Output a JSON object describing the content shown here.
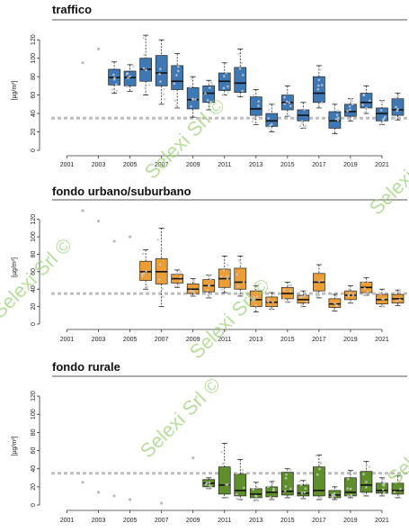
{
  "chart_data": [
    {
      "type": "box",
      "title": "traffico",
      "ylabel": "[µg/m³]",
      "ylim": [
        0,
        130
      ],
      "yticks": [
        0,
        20,
        40,
        60,
        80,
        100,
        120
      ],
      "xticks": [
        2001,
        2003,
        2005,
        2007,
        2009,
        2011,
        2013,
        2015,
        2017,
        2019,
        2021
      ],
      "xlim": [
        2000,
        2022.6
      ],
      "limit_line": 35,
      "color": "#3f79b5",
      "boxes": [
        {
          "year": 2004,
          "min": 62,
          "q1": 71,
          "median": 79,
          "q3": 88,
          "max": 96
        },
        {
          "year": 2005,
          "min": 64,
          "q1": 70,
          "median": 79,
          "q3": 86,
          "max": 93
        },
        {
          "year": 2006,
          "min": 60,
          "q1": 75,
          "median": 88,
          "q3": 100,
          "max": 125
        },
        {
          "year": 2007,
          "min": 50,
          "q1": 70,
          "median": 84,
          "q3": 103,
          "max": 120
        },
        {
          "year": 2008,
          "min": 46,
          "q1": 66,
          "median": 75,
          "q3": 92,
          "max": 105
        },
        {
          "year": 2009,
          "min": 36,
          "q1": 45,
          "median": 55,
          "q3": 68,
          "max": 80
        },
        {
          "year": 2010,
          "min": 44,
          "q1": 52,
          "median": 62,
          "q3": 70,
          "max": 76
        },
        {
          "year": 2011,
          "min": 60,
          "q1": 65,
          "median": 75,
          "q3": 84,
          "max": 95
        },
        {
          "year": 2012,
          "min": 58,
          "q1": 63,
          "median": 73,
          "q3": 90,
          "max": 110
        },
        {
          "year": 2013,
          "min": 28,
          "q1": 38,
          "median": 45,
          "q3": 58,
          "max": 66
        },
        {
          "year": 2014,
          "min": 20,
          "q1": 26,
          "median": 32,
          "q3": 40,
          "max": 50
        },
        {
          "year": 2015,
          "min": 37,
          "q1": 44,
          "median": 52,
          "q3": 60,
          "max": 70
        },
        {
          "year": 2016,
          "min": 24,
          "q1": 32,
          "median": 38,
          "q3": 44,
          "max": 52
        },
        {
          "year": 2017,
          "min": 46,
          "q1": 52,
          "median": 62,
          "q3": 80,
          "max": 92
        },
        {
          "year": 2018,
          "min": 18,
          "q1": 24,
          "median": 32,
          "q3": 42,
          "max": 50
        },
        {
          "year": 2019,
          "min": 32,
          "q1": 37,
          "median": 42,
          "q3": 50,
          "max": 56
        },
        {
          "year": 2020,
          "min": 40,
          "q1": 46,
          "median": 52,
          "q3": 62,
          "max": 70
        },
        {
          "year": 2021,
          "min": 28,
          "q1": 32,
          "median": 40,
          "q3": 46,
          "max": 54
        },
        {
          "year": 2022,
          "min": 33,
          "q1": 38,
          "median": 44,
          "q3": 56,
          "max": 62
        }
      ],
      "outliers": [
        {
          "year": 2002,
          "value": 95
        },
        {
          "year": 2003,
          "value": 110
        }
      ]
    },
    {
      "type": "box",
      "title": "fondo urbano/suburbano",
      "ylabel": "[µg/m³]",
      "ylim": [
        0,
        130
      ],
      "yticks": [
        0,
        20,
        40,
        60,
        80,
        100,
        120
      ],
      "xticks": [
        2001,
        2003,
        2005,
        2007,
        2009,
        2011,
        2013,
        2015,
        2017,
        2019,
        2021
      ],
      "xlim": [
        2000,
        2022.6
      ],
      "limit_line": 35,
      "color": "#eb9d36",
      "boxes": [
        {
          "year": 2006,
          "min": 40,
          "q1": 50,
          "median": 60,
          "q3": 72,
          "max": 85
        },
        {
          "year": 2007,
          "min": 20,
          "q1": 46,
          "median": 60,
          "q3": 75,
          "max": 110
        },
        {
          "year": 2008,
          "min": 42,
          "q1": 47,
          "median": 52,
          "q3": 57,
          "max": 62
        },
        {
          "year": 2009,
          "min": 32,
          "q1": 35,
          "median": 40,
          "q3": 46,
          "max": 52
        },
        {
          "year": 2010,
          "min": 30,
          "q1": 37,
          "median": 44,
          "q3": 51,
          "max": 56
        },
        {
          "year": 2011,
          "min": 36,
          "q1": 42,
          "median": 52,
          "q3": 63,
          "max": 78
        },
        {
          "year": 2012,
          "min": 32,
          "q1": 40,
          "median": 48,
          "q3": 64,
          "max": 78
        },
        {
          "year": 2013,
          "min": 14,
          "q1": 20,
          "median": 28,
          "q3": 38,
          "max": 44
        },
        {
          "year": 2014,
          "min": 17,
          "q1": 20,
          "median": 25,
          "q3": 31,
          "max": 36
        },
        {
          "year": 2015,
          "min": 25,
          "q1": 29,
          "median": 35,
          "q3": 42,
          "max": 48
        },
        {
          "year": 2016,
          "min": 20,
          "q1": 24,
          "median": 28,
          "q3": 33,
          "max": 38
        },
        {
          "year": 2017,
          "min": 30,
          "q1": 38,
          "median": 48,
          "q3": 58,
          "max": 68
        },
        {
          "year": 2018,
          "min": 15,
          "q1": 19,
          "median": 23,
          "q3": 29,
          "max": 34
        },
        {
          "year": 2019,
          "min": 24,
          "q1": 28,
          "median": 33,
          "q3": 38,
          "max": 44
        },
        {
          "year": 2020,
          "min": 33,
          "q1": 36,
          "median": 42,
          "q3": 48,
          "max": 53
        },
        {
          "year": 2021,
          "min": 20,
          "q1": 23,
          "median": 28,
          "q3": 34,
          "max": 40
        },
        {
          "year": 2022,
          "min": 21,
          "q1": 24,
          "median": 29,
          "q3": 34,
          "max": 39
        }
      ],
      "outliers": [
        {
          "year": 2002,
          "value": 130
        },
        {
          "year": 2003,
          "value": 118
        },
        {
          "year": 2004,
          "value": 95
        },
        {
          "year": 2005,
          "value": 100
        }
      ]
    },
    {
      "type": "box",
      "title": "fondo rurale",
      "ylabel": "[µg/m³]",
      "ylim": [
        0,
        130
      ],
      "yticks": [
        0,
        20,
        40,
        60,
        80,
        100,
        120
      ],
      "xticks": [
        2001,
        2003,
        2005,
        2007,
        2009,
        2011,
        2013,
        2015,
        2017,
        2019,
        2021
      ],
      "xlim": [
        2000,
        2022.6
      ],
      "limit_line": 35,
      "color": "#5e8f2a",
      "boxes": [
        {
          "year": 2010,
          "min": 18,
          "q1": 20,
          "median": 24,
          "q3": 28,
          "max": 30
        },
        {
          "year": 2011,
          "min": 8,
          "q1": 12,
          "median": 22,
          "q3": 42,
          "max": 68
        },
        {
          "year": 2012,
          "min": 6,
          "q1": 10,
          "median": 16,
          "q3": 34,
          "max": 50
        },
        {
          "year": 2013,
          "min": 5,
          "q1": 8,
          "median": 12,
          "q3": 18,
          "max": 25
        },
        {
          "year": 2014,
          "min": 6,
          "q1": 9,
          "median": 14,
          "q3": 20,
          "max": 26
        },
        {
          "year": 2015,
          "min": 8,
          "q1": 11,
          "median": 15,
          "q3": 36,
          "max": 40
        },
        {
          "year": 2016,
          "min": 7,
          "q1": 10,
          "median": 13,
          "q3": 22,
          "max": 27
        },
        {
          "year": 2017,
          "min": 6,
          "q1": 10,
          "median": 16,
          "q3": 42,
          "max": 55
        },
        {
          "year": 2018,
          "min": 6,
          "q1": 8,
          "median": 11,
          "q3": 16,
          "max": 20
        },
        {
          "year": 2019,
          "min": 8,
          "q1": 10,
          "median": 14,
          "q3": 30,
          "max": 38
        },
        {
          "year": 2020,
          "min": 10,
          "q1": 14,
          "median": 22,
          "q3": 37,
          "max": 48
        },
        {
          "year": 2021,
          "min": 10,
          "q1": 13,
          "median": 16,
          "q3": 24,
          "max": 30
        },
        {
          "year": 2022,
          "min": 8,
          "q1": 12,
          "median": 16,
          "q3": 24,
          "max": 32
        }
      ],
      "outliers": [
        {
          "year": 2002,
          "value": 25
        },
        {
          "year": 2003,
          "value": 14
        },
        {
          "year": 2004,
          "value": 10
        },
        {
          "year": 2005,
          "value": 6
        },
        {
          "year": 2007,
          "value": 2
        },
        {
          "year": 2009,
          "value": 52
        }
      ]
    }
  ],
  "watermark": {
    "text": "Selexi Srl ©",
    "color": "#9fd37a"
  }
}
